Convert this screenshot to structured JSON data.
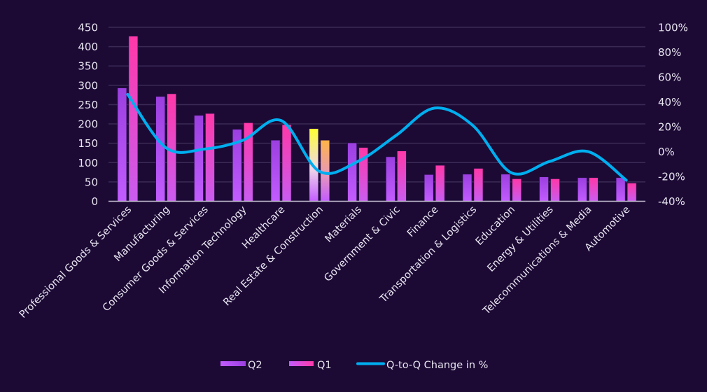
{
  "chart_data": {
    "type": "bar",
    "title": "",
    "xlabel": "",
    "ylabel": "",
    "y2label": "",
    "categories": [
      "Professional Goods & Services",
      "Manufacturing",
      "Consumer Goods & Services",
      "Information Technology",
      "Healthcare",
      "Real Estate & Construction",
      "Materials",
      "Government & Civic",
      "Finance",
      "Transportation & Logistics",
      "Education",
      "Energy & Utilities",
      "Telecommunications & Media",
      "Automotive"
    ],
    "series": [
      {
        "name": "Q2",
        "type": "bar",
        "axis": "left",
        "values": [
          293,
          271,
          222,
          186,
          158,
          188,
          151,
          115,
          69,
          70,
          70,
          63,
          61,
          61
        ]
      },
      {
        "name": "Q1",
        "type": "bar",
        "axis": "left",
        "values": [
          427,
          278,
          227,
          203,
          198,
          158,
          139,
          130,
          93,
          85,
          58,
          58,
          61,
          47
        ]
      },
      {
        "name": "Q-to-Q Change in %",
        "type": "line",
        "axis": "right",
        "smooth": true,
        "values": [
          46,
          3,
          2,
          9,
          25,
          -16,
          -8,
          13,
          35,
          21,
          -17,
          -8,
          0,
          -23
        ]
      }
    ],
    "highlighted_category": "Real Estate & Construction",
    "ylim": [
      0,
      450
    ],
    "yticks": [
      "0",
      "50",
      "100",
      "150",
      "200",
      "250",
      "300",
      "350",
      "400",
      "450"
    ],
    "y2lim": [
      -40,
      100
    ],
    "y2ticks": [
      "-40%",
      "-20%",
      "0%",
      "20%",
      "40%",
      "60%",
      "80%",
      "100%"
    ],
    "grid": true,
    "legend_position": "bottom",
    "legend": [
      "Q2",
      "Q1",
      "Q-to-Q Change in %"
    ],
    "colors": {
      "background": "#1c0a35",
      "q2_top": "#9b3fe0",
      "q2_bottom": "#c25cff",
      "q1_top": "#ff38a8",
      "q1_bottom": "#c95cf0",
      "highlight_q2_top": "#ffff33",
      "highlight_q1_top": "#ffb347",
      "line": "#00aeef",
      "grid": "#3a2a55",
      "axis": "#c8c2d4",
      "text": "#e8e4f0"
    }
  }
}
